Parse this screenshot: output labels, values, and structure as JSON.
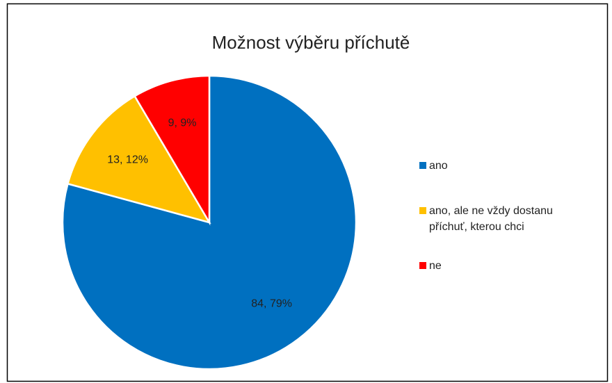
{
  "chart_data": {
    "type": "pie",
    "title": "Možnost výběru příchutě",
    "categories": [
      "ano",
      "ano, ale ne vždy dostanu příchuť, kterou chci",
      "ne"
    ],
    "values": [
      84,
      13,
      9
    ],
    "value_labels": [
      "84, 79%",
      "13, 12%",
      "9, 9%"
    ],
    "colors": [
      "#0070c0",
      "#ffc000",
      "#ff0000"
    ],
    "legend": "right"
  }
}
